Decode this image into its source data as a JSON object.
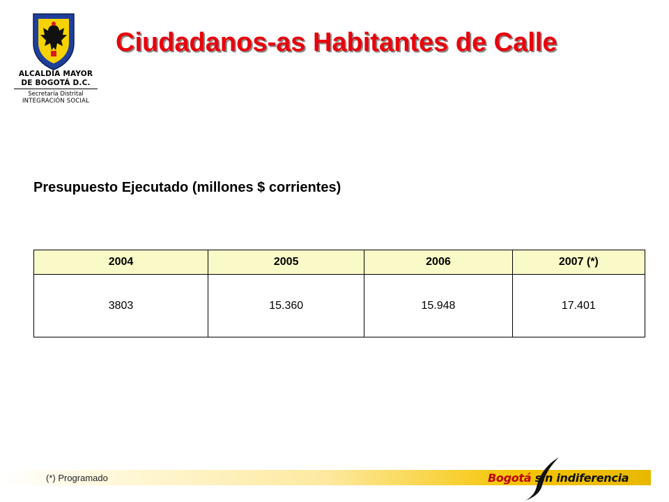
{
  "logo": {
    "line1": "ALCALDÍA MAYOR",
    "line2": "DE BOGOTÁ D.C.",
    "line3": "Secretaría Distrital",
    "line4": "INTEGRACIÓN SOCIAL",
    "icon": "coat-of-arms-icon",
    "colors": {
      "shield_blue": "#1f3f9a",
      "shield_yellow": "#f5d200",
      "shield_red": "#d81b1b"
    }
  },
  "title": "Ciudadanos-as Habitantes de Calle",
  "subtitle": "Presupuesto Ejecutado (millones $ corrientes)",
  "table": {
    "headers": [
      "2004",
      "2005",
      "2006",
      "2007 (*)"
    ],
    "rows": [
      [
        "3803",
        "15.360",
        "15.948",
        "17.401"
      ]
    ]
  },
  "footnote": "(*) Programado",
  "brand": {
    "part1": "Bogotá",
    "part2": "sin indiferencia",
    "colors": {
      "red": "#c0000b",
      "band": "#f5c400"
    }
  },
  "colors": {
    "title": "#e8000b",
    "header_bg": "#fafac8"
  }
}
